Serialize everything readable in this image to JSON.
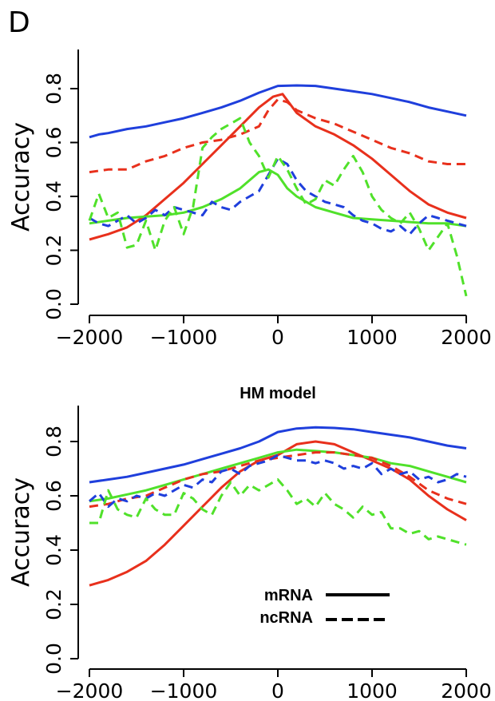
{
  "panel_label": "D",
  "colors": {
    "blue": "#1f3fdc",
    "red": "#e8301c",
    "green": "#50e12a",
    "axis": "#000000"
  },
  "legend": {
    "items": [
      {
        "label": "mRNA",
        "style": "solid"
      },
      {
        "label": "ncRNA",
        "style": "dashed"
      }
    ]
  },
  "chart_data": [
    {
      "type": "line",
      "title": "",
      "xlabel": "",
      "ylabel": "Accuracy",
      "xlim": [
        -2000,
        2000
      ],
      "ylim": [
        0.0,
        0.8
      ],
      "xticks": [
        -2000,
        -1000,
        0,
        1000,
        2000
      ],
      "xtick_labels": [
        "−2000",
        "−1000",
        "0",
        "1000",
        "2000"
      ],
      "yticks": [
        0.0,
        0.2,
        0.4,
        0.6,
        0.8
      ],
      "ytick_labels": [
        "0.0",
        "0.2",
        "0.4",
        "0.6",
        "0.8"
      ],
      "series": [
        {
          "color": "blue",
          "style": "solid",
          "x": [
            -2000,
            -1900,
            -1800,
            -1600,
            -1400,
            -1200,
            -1000,
            -800,
            -600,
            -400,
            -200,
            0,
            200,
            400,
            600,
            800,
            1000,
            1200,
            1400,
            1600,
            1800,
            2000
          ],
          "y": [
            0.62,
            0.63,
            0.635,
            0.65,
            0.66,
            0.675,
            0.69,
            0.71,
            0.73,
            0.755,
            0.785,
            0.81,
            0.812,
            0.81,
            0.8,
            0.79,
            0.78,
            0.765,
            0.75,
            0.73,
            0.715,
            0.7
          ]
        },
        {
          "color": "red",
          "style": "solid",
          "x": [
            -2000,
            -1800,
            -1600,
            -1400,
            -1200,
            -1000,
            -800,
            -600,
            -400,
            -200,
            -50,
            50,
            200,
            400,
            600,
            800,
            1000,
            1200,
            1400,
            1600,
            1800,
            2000
          ],
          "y": [
            0.24,
            0.26,
            0.285,
            0.33,
            0.39,
            0.45,
            0.52,
            0.59,
            0.66,
            0.73,
            0.77,
            0.78,
            0.71,
            0.66,
            0.63,
            0.59,
            0.54,
            0.48,
            0.42,
            0.37,
            0.34,
            0.32
          ]
        },
        {
          "color": "green",
          "style": "solid",
          "x": [
            -2000,
            -1800,
            -1600,
            -1400,
            -1200,
            -1000,
            -800,
            -600,
            -400,
            -200,
            -100,
            0,
            100,
            200,
            400,
            600,
            800,
            1000,
            1200,
            1400,
            1600,
            1800,
            2000
          ],
          "y": [
            0.3,
            0.31,
            0.32,
            0.325,
            0.33,
            0.34,
            0.36,
            0.39,
            0.43,
            0.49,
            0.5,
            0.48,
            0.43,
            0.4,
            0.36,
            0.34,
            0.32,
            0.315,
            0.31,
            0.305,
            0.3,
            0.3,
            0.29
          ]
        },
        {
          "color": "red",
          "style": "dashed",
          "x": [
            -2000,
            -1800,
            -1600,
            -1400,
            -1200,
            -1000,
            -800,
            -600,
            -400,
            -200,
            -100,
            0,
            100,
            200,
            400,
            600,
            800,
            1000,
            1200,
            1400,
            1600,
            1800,
            2000
          ],
          "y": [
            0.49,
            0.5,
            0.5,
            0.53,
            0.55,
            0.58,
            0.6,
            0.61,
            0.63,
            0.66,
            0.72,
            0.76,
            0.75,
            0.72,
            0.69,
            0.67,
            0.64,
            0.61,
            0.58,
            0.56,
            0.53,
            0.52,
            0.52
          ]
        },
        {
          "color": "blue",
          "style": "dashed",
          "x": [
            -2000,
            -1900,
            -1800,
            -1700,
            -1600,
            -1500,
            -1400,
            -1300,
            -1200,
            -1100,
            -1000,
            -900,
            -800,
            -700,
            -600,
            -500,
            -400,
            -300,
            -200,
            -100,
            0,
            100,
            200,
            300,
            400,
            500,
            600,
            700,
            800,
            900,
            1000,
            1100,
            1200,
            1300,
            1400,
            1500,
            1600,
            1700,
            1800,
            1900,
            2000
          ],
          "y": [
            0.32,
            0.3,
            0.29,
            0.31,
            0.33,
            0.3,
            0.32,
            0.35,
            0.33,
            0.36,
            0.35,
            0.34,
            0.33,
            0.38,
            0.36,
            0.35,
            0.38,
            0.4,
            0.42,
            0.48,
            0.54,
            0.52,
            0.46,
            0.42,
            0.4,
            0.38,
            0.37,
            0.36,
            0.33,
            0.31,
            0.3,
            0.28,
            0.27,
            0.29,
            0.26,
            0.3,
            0.33,
            0.32,
            0.31,
            0.3,
            0.29
          ]
        },
        {
          "color": "green",
          "style": "dashed",
          "x": [
            -2000,
            -1900,
            -1800,
            -1700,
            -1600,
            -1500,
            -1400,
            -1300,
            -1200,
            -1100,
            -1000,
            -900,
            -800,
            -700,
            -600,
            -500,
            -400,
            -300,
            -200,
            -100,
            0,
            100,
            200,
            300,
            400,
            500,
            600,
            700,
            800,
            900,
            1000,
            1100,
            1200,
            1300,
            1400,
            1500,
            1600,
            1700,
            1800,
            1900,
            2000
          ],
          "y": [
            0.31,
            0.41,
            0.32,
            0.34,
            0.21,
            0.22,
            0.31,
            0.2,
            0.31,
            0.36,
            0.26,
            0.36,
            0.58,
            0.62,
            0.65,
            0.67,
            0.69,
            0.6,
            0.55,
            0.47,
            0.55,
            0.5,
            0.43,
            0.37,
            0.39,
            0.46,
            0.44,
            0.5,
            0.55,
            0.49,
            0.4,
            0.35,
            0.32,
            0.3,
            0.34,
            0.28,
            0.2,
            0.25,
            0.3,
            0.18,
            0.03
          ]
        }
      ]
    },
    {
      "type": "line",
      "title": "HM model",
      "xlabel": "",
      "ylabel": "Accuracy",
      "xlim": [
        -2000,
        2000
      ],
      "ylim": [
        0.0,
        0.8
      ],
      "xticks": [
        -2000,
        -1000,
        0,
        1000,
        2000
      ],
      "xtick_labels": [
        "−2000",
        "−1000",
        "0",
        "1000",
        "2000"
      ],
      "yticks": [
        0.0,
        0.2,
        0.4,
        0.6,
        0.8
      ],
      "ytick_labels": [
        "0.0",
        "0.2",
        "0.4",
        "0.6",
        "0.8"
      ],
      "series": [
        {
          "color": "blue",
          "style": "solid",
          "x": [
            -2000,
            -1800,
            -1600,
            -1400,
            -1200,
            -1000,
            -800,
            -600,
            -400,
            -200,
            0,
            200,
            400,
            600,
            800,
            1000,
            1200,
            1400,
            1600,
            1800,
            2000
          ],
          "y": [
            0.65,
            0.66,
            0.67,
            0.685,
            0.7,
            0.715,
            0.735,
            0.755,
            0.775,
            0.8,
            0.835,
            0.848,
            0.852,
            0.85,
            0.845,
            0.835,
            0.825,
            0.815,
            0.8,
            0.785,
            0.775
          ]
        },
        {
          "color": "red",
          "style": "solid",
          "x": [
            -2000,
            -1800,
            -1600,
            -1400,
            -1200,
            -1000,
            -800,
            -600,
            -400,
            -200,
            0,
            200,
            400,
            600,
            800,
            1000,
            1200,
            1400,
            1600,
            1800,
            2000
          ],
          "y": [
            0.27,
            0.29,
            0.32,
            0.36,
            0.42,
            0.49,
            0.56,
            0.63,
            0.69,
            0.73,
            0.75,
            0.79,
            0.8,
            0.79,
            0.76,
            0.73,
            0.7,
            0.66,
            0.6,
            0.55,
            0.51
          ]
        },
        {
          "color": "green",
          "style": "solid",
          "x": [
            -2000,
            -1800,
            -1600,
            -1400,
            -1200,
            -1000,
            -800,
            -600,
            -400,
            -200,
            0,
            200,
            400,
            600,
            800,
            1000,
            1200,
            1400,
            1600,
            1800,
            2000
          ],
          "y": [
            0.58,
            0.59,
            0.605,
            0.62,
            0.64,
            0.66,
            0.68,
            0.7,
            0.72,
            0.74,
            0.76,
            0.77,
            0.765,
            0.76,
            0.75,
            0.74,
            0.72,
            0.71,
            0.69,
            0.67,
            0.65
          ]
        },
        {
          "color": "red",
          "style": "dashed",
          "x": [
            -2000,
            -1800,
            -1600,
            -1400,
            -1200,
            -1000,
            -800,
            -600,
            -400,
            -200,
            0,
            200,
            400,
            600,
            800,
            1000,
            1200,
            1400,
            1600,
            1800,
            2000
          ],
          "y": [
            0.56,
            0.57,
            0.59,
            0.6,
            0.63,
            0.66,
            0.68,
            0.69,
            0.71,
            0.73,
            0.74,
            0.75,
            0.76,
            0.76,
            0.75,
            0.74,
            0.71,
            0.67,
            0.62,
            0.59,
            0.57
          ]
        },
        {
          "color": "blue",
          "style": "dashed",
          "x": [
            -2000,
            -1900,
            -1800,
            -1700,
            -1600,
            -1500,
            -1400,
            -1300,
            -1200,
            -1100,
            -1000,
            -900,
            -800,
            -700,
            -600,
            -500,
            -400,
            -300,
            -200,
            -100,
            0,
            100,
            200,
            300,
            400,
            500,
            600,
            700,
            800,
            900,
            1000,
            1100,
            1200,
            1300,
            1400,
            1500,
            1600,
            1700,
            1800,
            1900,
            2000
          ],
          "y": [
            0.58,
            0.61,
            0.56,
            0.59,
            0.58,
            0.6,
            0.59,
            0.61,
            0.6,
            0.62,
            0.64,
            0.63,
            0.66,
            0.65,
            0.69,
            0.7,
            0.68,
            0.71,
            0.72,
            0.73,
            0.75,
            0.74,
            0.73,
            0.73,
            0.72,
            0.73,
            0.72,
            0.7,
            0.71,
            0.7,
            0.72,
            0.68,
            0.7,
            0.68,
            0.69,
            0.66,
            0.67,
            0.65,
            0.66,
            0.68,
            0.67
          ]
        },
        {
          "color": "green",
          "style": "dashed",
          "x": [
            -2000,
            -1900,
            -1800,
            -1700,
            -1600,
            -1500,
            -1400,
            -1300,
            -1200,
            -1100,
            -1000,
            -900,
            -800,
            -700,
            -600,
            -500,
            -400,
            -300,
            -200,
            -100,
            0,
            100,
            200,
            300,
            400,
            500,
            600,
            700,
            800,
            900,
            1000,
            1100,
            1200,
            1300,
            1400,
            1500,
            1600,
            1700,
            1800,
            1900,
            2000
          ],
          "y": [
            0.5,
            0.5,
            0.62,
            0.55,
            0.53,
            0.52,
            0.59,
            0.55,
            0.53,
            0.53,
            0.61,
            0.59,
            0.55,
            0.53,
            0.6,
            0.65,
            0.6,
            0.64,
            0.62,
            0.64,
            0.66,
            0.62,
            0.57,
            0.59,
            0.56,
            0.61,
            0.57,
            0.55,
            0.52,
            0.56,
            0.53,
            0.54,
            0.48,
            0.48,
            0.46,
            0.47,
            0.44,
            0.45,
            0.44,
            0.43,
            0.42
          ]
        }
      ]
    }
  ]
}
